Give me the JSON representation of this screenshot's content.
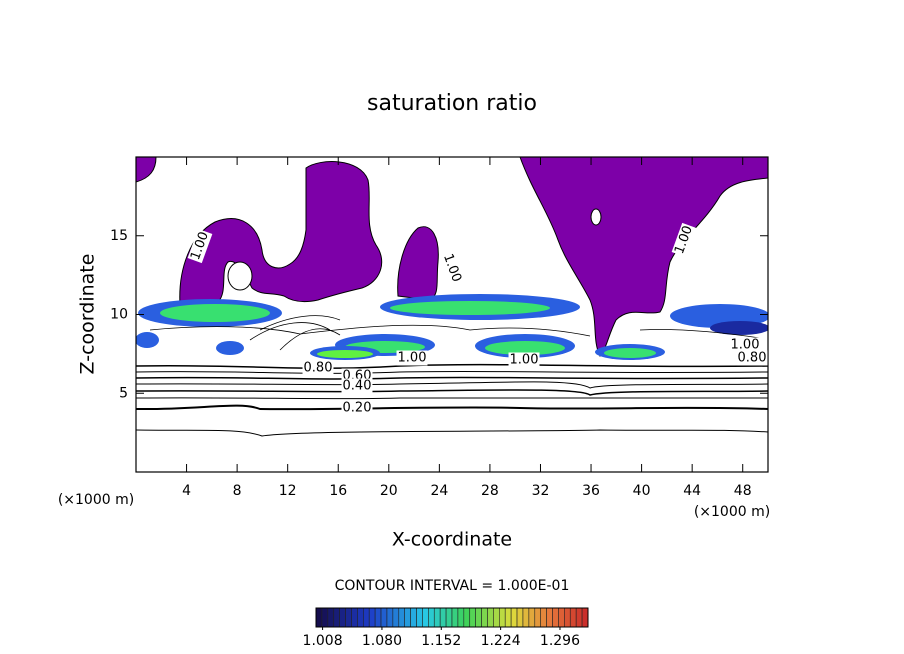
{
  "chart_data": {
    "type": "contour",
    "title": "saturation ratio",
    "x_label": "X-coordinate",
    "y_label": "Z-coordinate",
    "x_unit_label": "(×1000 m)",
    "annotation": "CONTOUR INTERVAL = 1.000E-01",
    "xlim": [
      0,
      50
    ],
    "xticks": [
      4,
      8,
      12,
      16,
      20,
      24,
      28,
      32,
      36,
      40,
      44,
      48
    ],
    "ylim": [
      0,
      20
    ],
    "yticks": [
      5,
      10,
      15
    ],
    "contour_labels": [
      "1.00",
      "1.00",
      "1.00",
      "1.00",
      "1.00",
      "1.00",
      "0.80",
      "0.80",
      "0.60",
      "0.40",
      "0.20"
    ],
    "colorbar": {
      "clim": [
        1.0,
        1.33
      ],
      "ticks": [
        1.008,
        {
          "value": 1.08,
          "label": "1.080"
        },
        1.152,
        1.224,
        1.296
      ]
    }
  }
}
